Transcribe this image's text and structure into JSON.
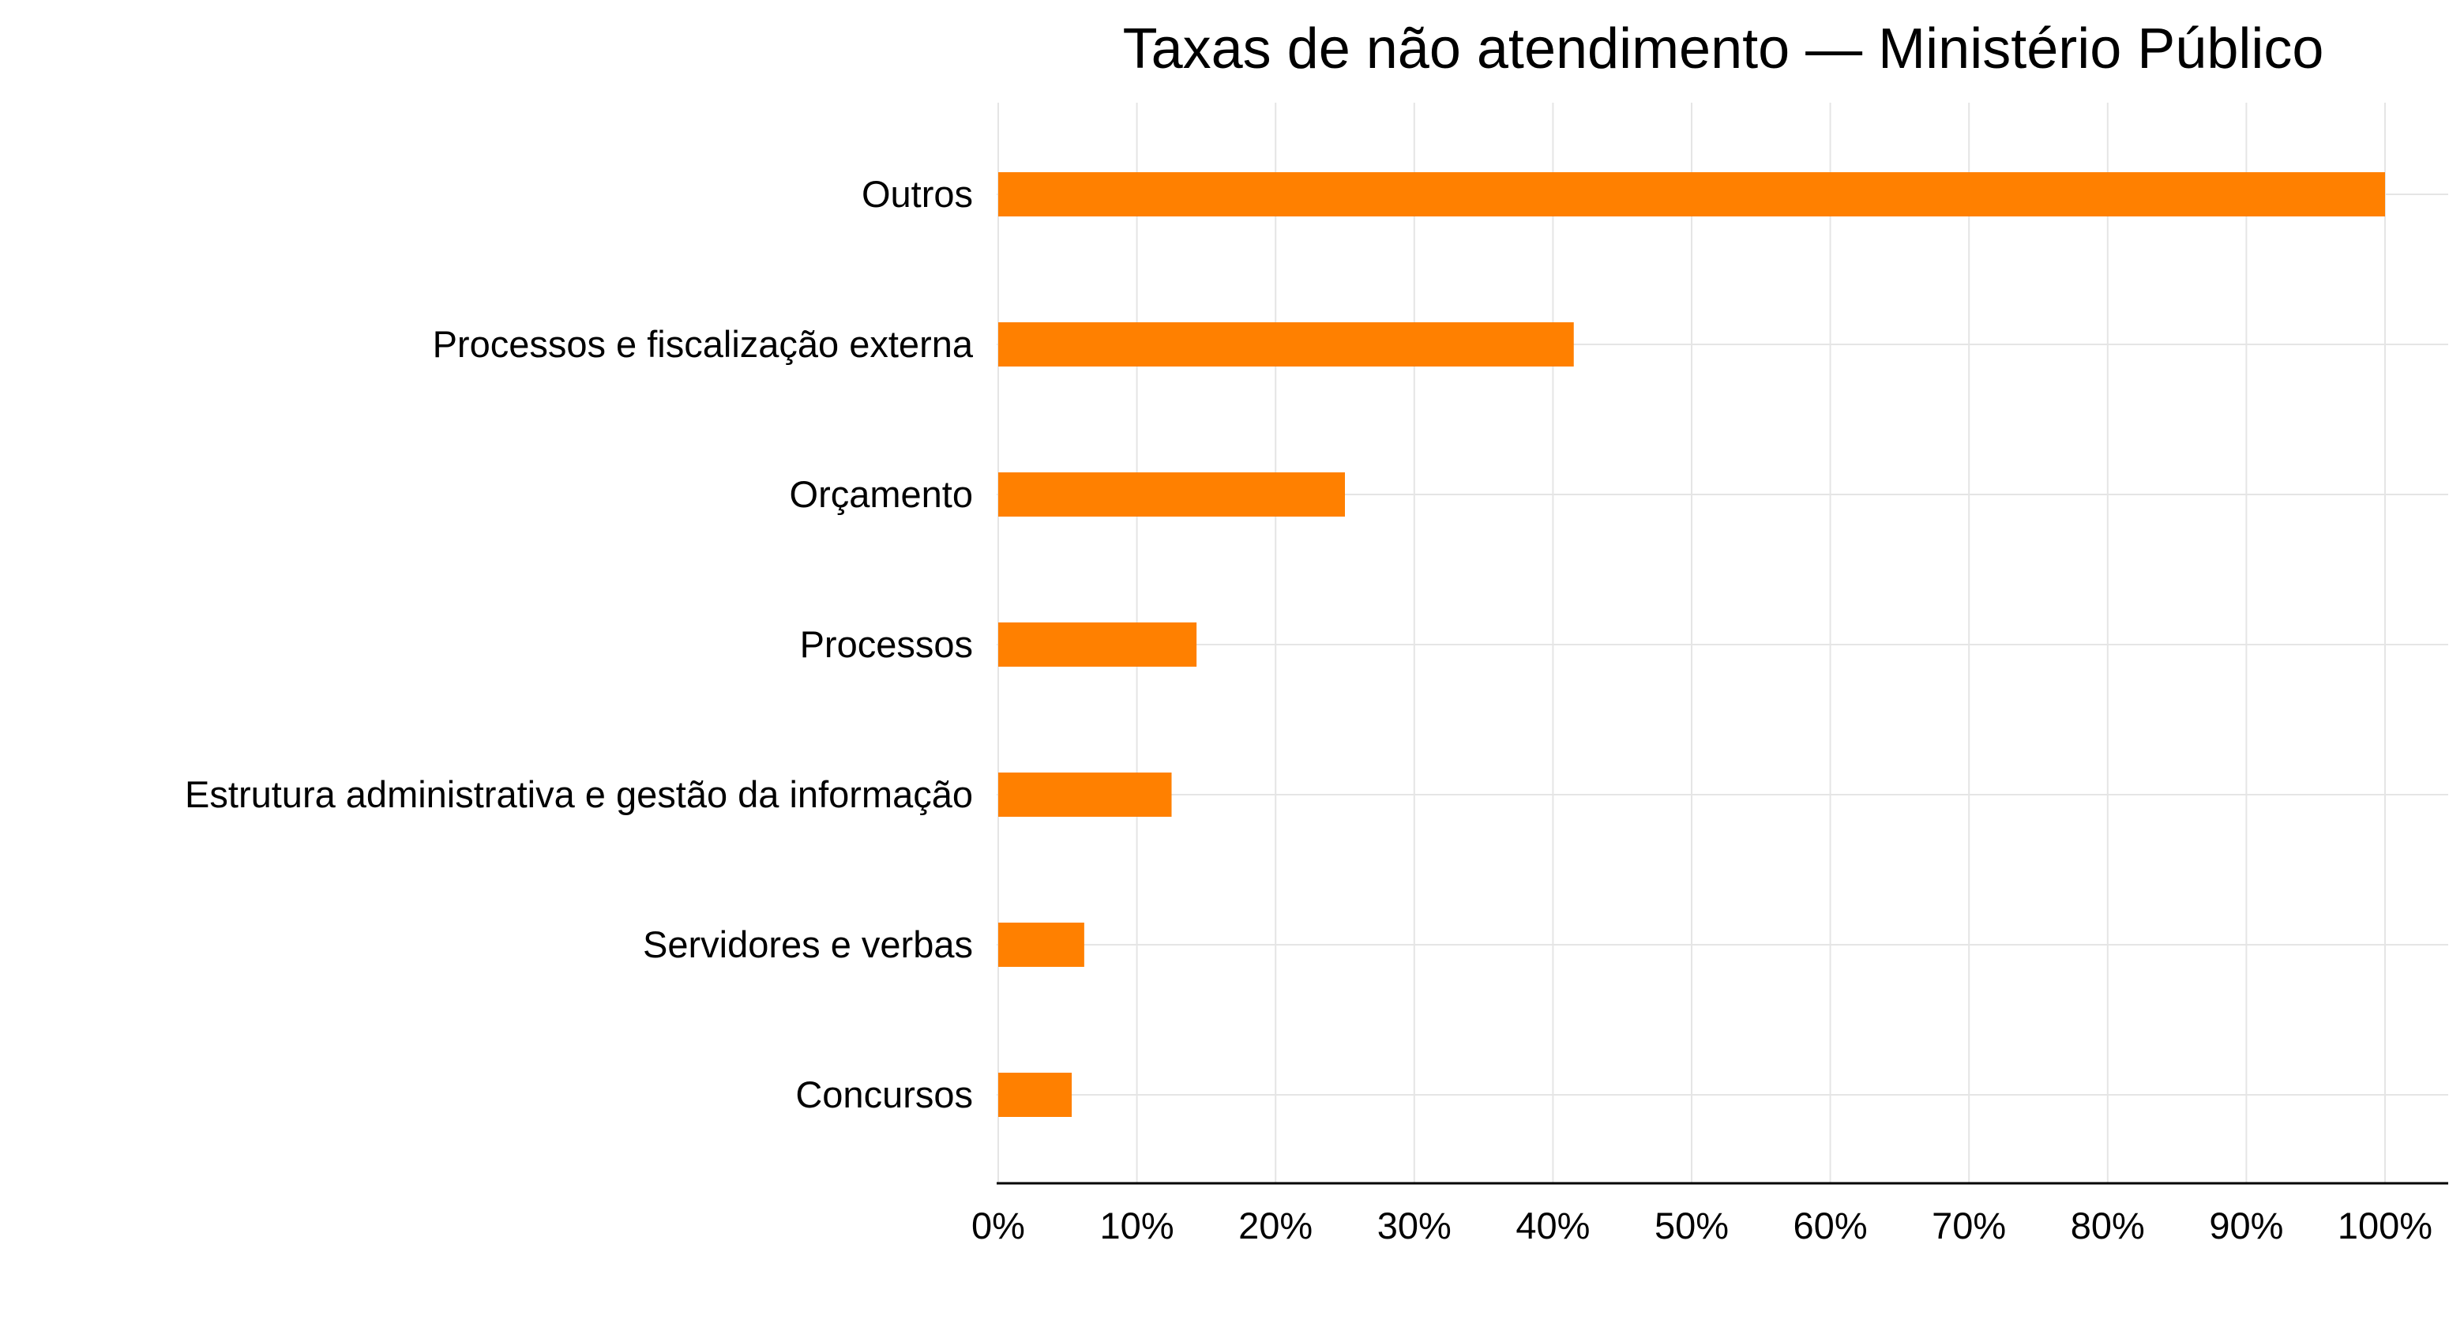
{
  "chart_data": {
    "type": "bar",
    "orientation": "horizontal",
    "title": "Taxas de não atendimento — Ministério Público",
    "xlabel": "",
    "ylabel": "",
    "categories": [
      "Outros",
      "Processos e fiscalização externa",
      "Orçamento",
      "Processos",
      "Estrutura administrativa e gestão da informação",
      "Servidores e verbas",
      "Concursos"
    ],
    "values": [
      100,
      41.5,
      25,
      14.3,
      12.5,
      6.2,
      5.3
    ],
    "xlim": [
      0,
      100
    ],
    "x_ticks": [
      0,
      10,
      20,
      30,
      40,
      50,
      60,
      70,
      80,
      90,
      100
    ],
    "x_tick_labels": [
      "0%",
      "10%",
      "20%",
      "30%",
      "40%",
      "50%",
      "60%",
      "70%",
      "80%",
      "90%",
      "100%"
    ],
    "grid": true,
    "legend": "none",
    "bar_color": "#FF8000",
    "grid_color": "#E5E5E5",
    "axis_color": "#000000"
  }
}
